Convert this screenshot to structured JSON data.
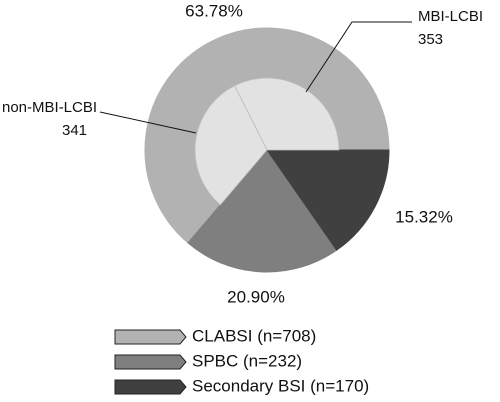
{
  "chart_data": {
    "type": "pie",
    "categories": [
      "CLABSI (n=708)",
      "SPBC (n=232)",
      "Secondary BSI (n=170)"
    ],
    "values": [
      63.78,
      20.9,
      15.32
    ],
    "value_labels": [
      "63.78%",
      "20.90%",
      "15.32%"
    ],
    "colors": [
      "#b2b2b2",
      "#7f7f7f",
      "#404040"
    ],
    "inner": {
      "categories": [
        "MBI-LCBI",
        "non-MBI-LCBI"
      ],
      "values": [
        353,
        341
      ],
      "color": "#e2e2e2"
    }
  }
}
